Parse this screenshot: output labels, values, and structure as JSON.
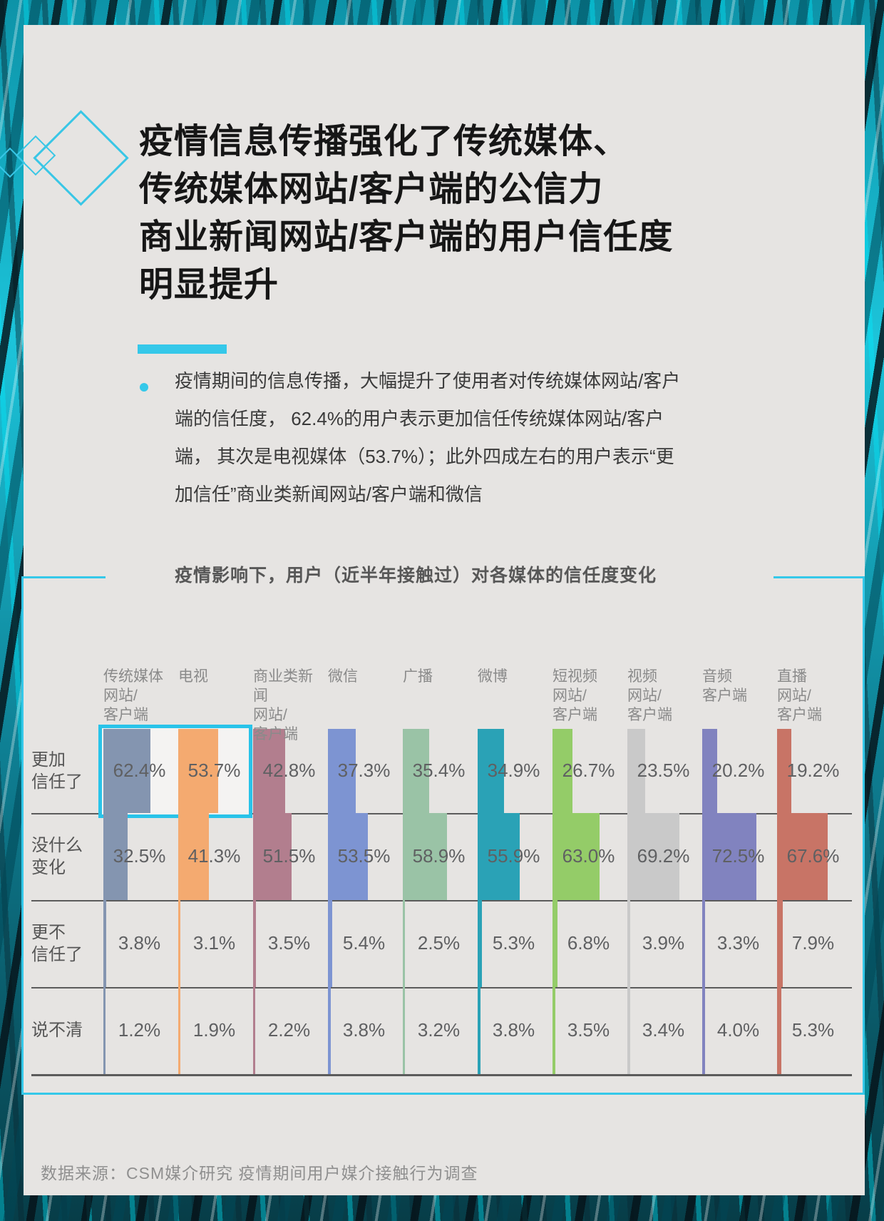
{
  "page": {
    "title": "疫情信息传播强化了传统媒体、\n传统媒体网站/客户端的公信力\n商业新闻网站/客户端的用户信任度\n明显提升",
    "bullet_text": "疫情期间的信息传播，大幅提升了使用者对传统媒体网站/客户端的信任度， 62.4%的用户表示更加信任传统媒体网站/客户端， 其次是电视媒体（53.7%）；此外四成左右的用户表示“更加信任”商业类新闻网站/客户端和微信",
    "footer": "数据来源：CSM媒介研究  疫情期间用户媒介接触行为调查"
  },
  "colors": {
    "accent_cyan": "#29c3e9",
    "card_background": "#e6e4e2",
    "background_teal": "#12b2c9"
  },
  "chart_data": {
    "type": "bar",
    "title": "疫情影响下，用户（近半年接触过）对各媒体的信任度变化",
    "unit": "%",
    "categories": [
      "传统媒体网站/客户端",
      "电视",
      "商业类新闻网站/客户端",
      "微信",
      "广播",
      "微博",
      "短视频网站/客户端",
      "视频网站/客户端",
      "音频客户端",
      "直播网站/客户端"
    ],
    "category_labels": [
      "传统媒体\n网站/\n客户端",
      "电视",
      "商业类新闻\n网站/\n客户端",
      "微信",
      "广播",
      "微博",
      "短视频\n网站/\n客户端",
      "视频\n网站/\n客户端",
      "音频\n客户端",
      "直播\n网站/\n客户端"
    ],
    "column_colors": [
      "#8495b0",
      "#f4aa70",
      "#b27e8e",
      "#7d94d2",
      "#9ac3a6",
      "#2aa2b6",
      "#94cc68",
      "#c9c9c9",
      "#8183bf",
      "#c87466"
    ],
    "series": [
      {
        "name": "更加信任了",
        "label_lines": "更加\n信任了",
        "values": [
          62.4,
          53.7,
          42.8,
          37.3,
          35.4,
          34.9,
          26.7,
          23.5,
          20.2,
          19.2
        ]
      },
      {
        "name": "没什么变化",
        "label_lines": "没什么\n变化",
        "values": [
          32.5,
          41.3,
          51.5,
          53.5,
          58.9,
          55.9,
          63.0,
          69.2,
          72.5,
          67.6
        ]
      },
      {
        "name": "更不信任了",
        "label_lines": "更不\n信任了",
        "values": [
          3.8,
          3.1,
          3.5,
          5.4,
          2.5,
          5.3,
          6.8,
          3.9,
          3.3,
          7.9
        ]
      },
      {
        "name": "说不清",
        "label_lines": "说不清",
        "values": [
          1.2,
          1.9,
          2.2,
          3.8,
          3.2,
          3.8,
          3.5,
          3.4,
          4.0,
          5.3
        ]
      }
    ],
    "highlight": {
      "row": "更加信任了",
      "columns": [
        "传统媒体网站/客户端",
        "电视"
      ],
      "color": "#29c3e9"
    },
    "value_label_format": "one_decimal_percent",
    "legend_position": "none",
    "grid": "row-dividers"
  }
}
